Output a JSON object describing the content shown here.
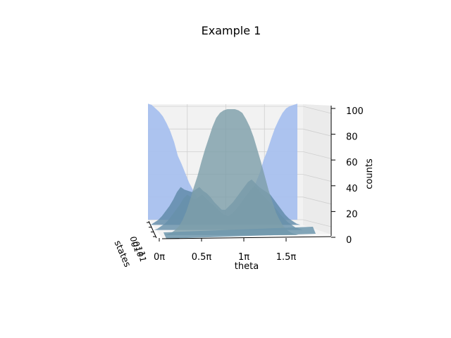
{
  "chart_data": {
    "type": "area",
    "title": "Example 1",
    "xlabel": "theta",
    "ylabel": "states",
    "zlabel": "counts",
    "x_tick_labels": [
      "0π",
      "0.5π",
      "1π",
      "1.5π"
    ],
    "x_tick_values": [
      0,
      0.5,
      1,
      1.5
    ],
    "xlim": [
      0,
      2
    ],
    "y_tick_labels": [
      "00",
      "01",
      "10",
      "11"
    ],
    "z_tick_labels": [
      "0",
      "20",
      "40",
      "60",
      "80",
      "100"
    ],
    "z_tick_values": [
      0,
      20,
      40,
      60,
      80,
      100
    ],
    "zlim": [
      0,
      105
    ],
    "grid": true,
    "series": [
      {
        "state": "00",
        "color": "#a8c0ee",
        "x": [
          0,
          0.05,
          0.1,
          0.15,
          0.2,
          0.25,
          0.3,
          0.35,
          0.4,
          0.45,
          0.5,
          0.55,
          0.6,
          0.65,
          0.7,
          0.75,
          0.8,
          0.85,
          0.9,
          0.95,
          1,
          1.05,
          1.1,
          1.15,
          1.2,
          1.25,
          1.3,
          1.35,
          1.4,
          1.45,
          1.5,
          1.55,
          1.6,
          1.65,
          1.7,
          1.75,
          1.8,
          1.85,
          1.9,
          1.95,
          2
        ],
        "values": [
          100,
          99,
          96,
          93,
          89,
          83,
          76,
          67,
          55,
          48,
          40,
          32,
          26,
          20,
          14,
          10,
          6,
          3,
          2,
          1,
          0,
          1,
          2,
          3,
          5,
          8,
          12,
          17,
          24,
          33,
          41,
          52,
          60,
          70,
          79,
          86,
          92,
          96,
          98,
          99,
          100
        ]
      },
      {
        "state": "01",
        "color": "#5f8aa8",
        "x": [
          0,
          0.05,
          0.1,
          0.15,
          0.2,
          0.25,
          0.3,
          0.35,
          0.4,
          0.45,
          0.5,
          0.55,
          0.6,
          0.65,
          0.7,
          0.75,
          0.8,
          0.85,
          0.9,
          0.95,
          1,
          1.05,
          1.1,
          1.15,
          1.2,
          1.25,
          1.3,
          1.35,
          1.4,
          1.45,
          1.5,
          1.55,
          1.6,
          1.65,
          1.7,
          1.75,
          1.8,
          1.85,
          1.9,
          1.95,
          2
        ],
        "values": [
          0,
          2,
          4,
          7,
          11,
          15,
          20,
          26,
          30,
          28,
          27,
          26,
          28,
          30,
          27,
          25,
          22,
          18,
          15,
          12,
          12,
          15,
          18,
          22,
          26,
          30,
          34,
          36,
          33,
          30,
          28,
          26,
          24,
          20,
          16,
          12,
          8,
          5,
          3,
          1,
          0
        ]
      },
      {
        "state": "10",
        "color": "#6690aa",
        "x": [
          0,
          0.05,
          0.1,
          0.15,
          0.2,
          0.25,
          0.3,
          0.35,
          0.4,
          0.45,
          0.5,
          0.55,
          0.6,
          0.65,
          0.7,
          0.75,
          0.8,
          0.85,
          0.9,
          0.95,
          1,
          1.05,
          1.1,
          1.15,
          1.2,
          1.25,
          1.3,
          1.35,
          1.4,
          1.45,
          1.5,
          1.55,
          1.6,
          1.65,
          1.7,
          1.75,
          1.8,
          1.85,
          1.9,
          1.95,
          2
        ],
        "values": [
          0,
          1,
          3,
          5,
          8,
          12,
          16,
          20,
          25,
          28,
          26,
          24,
          26,
          28,
          25,
          22,
          20,
          17,
          14,
          12,
          11,
          13,
          16,
          20,
          24,
          28,
          32,
          35,
          32,
          28,
          25,
          22,
          19,
          16,
          12,
          9,
          6,
          4,
          2,
          1,
          0
        ]
      },
      {
        "state": "11",
        "color": "#7e9fa9",
        "x": [
          0,
          0.05,
          0.1,
          0.15,
          0.2,
          0.25,
          0.3,
          0.35,
          0.4,
          0.45,
          0.5,
          0.55,
          0.6,
          0.65,
          0.7,
          0.75,
          0.8,
          0.85,
          0.9,
          0.95,
          1,
          1.05,
          1.1,
          1.15,
          1.2,
          1.25,
          1.3,
          1.35,
          1.4,
          1.45,
          1.5,
          1.55,
          1.6,
          1.65,
          1.7,
          1.75,
          1.8,
          1.85,
          1.9,
          1.95,
          2
        ],
        "values": [
          0,
          0,
          0,
          1,
          2,
          4,
          7,
          12,
          19,
          28,
          38,
          47,
          58,
          68,
          77,
          86,
          93,
          97,
          99,
          100,
          100,
          100,
          99,
          97,
          92,
          86,
          78,
          68,
          58,
          47,
          36,
          27,
          18,
          12,
          7,
          4,
          2,
          1,
          0,
          0,
          0
        ]
      }
    ]
  }
}
